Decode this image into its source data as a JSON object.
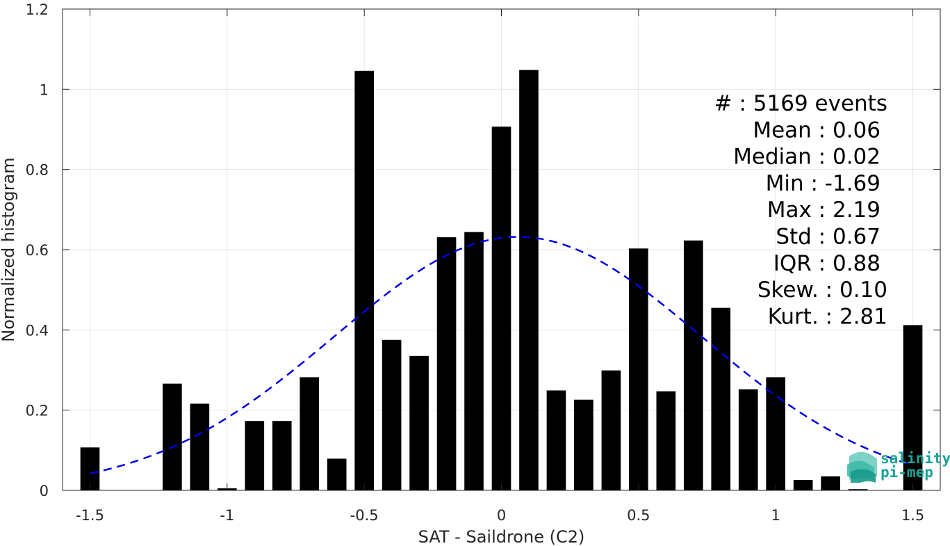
{
  "chart_data": {
    "type": "bar",
    "xlabel": "SAT - Saildrone (C2)",
    "ylabel": "Normalized histogram",
    "xlim": [
      -1.6,
      1.6
    ],
    "ylim": [
      0,
      1.2
    ],
    "xticks": [
      -1.5,
      -1,
      -0.5,
      0,
      0.5,
      1,
      1.5
    ],
    "xtick_labels": [
      "-1.5",
      "-1",
      "-0.5",
      "0",
      "0.5",
      "1",
      "1.5"
    ],
    "yticks": [
      0,
      0.2,
      0.4,
      0.6,
      0.8,
      1,
      1.2
    ],
    "ytick_labels": [
      "0",
      "0.2",
      "0.4",
      "0.6",
      "0.8",
      "1",
      "1.2"
    ],
    "grid": true,
    "bar_width": 0.07,
    "bars": {
      "x": [
        -1.5,
        -1.4,
        -1.3,
        -1.2,
        -1.1,
        -1.0,
        -0.9,
        -0.8,
        -0.7,
        -0.6,
        -0.5,
        -0.4,
        -0.3,
        -0.2,
        -0.1,
        0.0,
        0.1,
        0.2,
        0.3,
        0.4,
        0.5,
        0.6,
        0.7,
        0.8,
        0.9,
        1.0,
        1.1,
        1.2,
        1.3,
        1.4,
        1.5
      ],
      "values": [
        0.107,
        0.0,
        0.0,
        0.266,
        0.216,
        0.005,
        0.173,
        0.173,
        0.282,
        0.079,
        1.046,
        0.375,
        0.335,
        0.631,
        0.644,
        0.907,
        1.048,
        0.249,
        0.226,
        0.299,
        0.603,
        0.247,
        0.623,
        0.455,
        0.252,
        0.282,
        0.026,
        0.035,
        0.003,
        0.0,
        0.412
      ],
      "color": "#000000"
    },
    "fit": {
      "style": "dashed",
      "color": "#0000e6",
      "mean": 0.06,
      "std": 0.67,
      "peak": 0.632,
      "x_range": [
        -1.5,
        1.5
      ]
    },
    "annotations": [
      "#  : 5169 events",
      "Mean : 0.06",
      "Median : 0.02",
      "Min : -1.69",
      "Max : 2.19",
      "Std : 0.67",
      "IQR : 0.88",
      "Skew. : 0.10",
      "Kurt. : 2.81"
    ]
  },
  "logo": {
    "line1": "salinity",
    "line2": "pi-mep",
    "colors": [
      "#7fd3c6",
      "#3bb8a6",
      "#1a9a8c"
    ]
  }
}
